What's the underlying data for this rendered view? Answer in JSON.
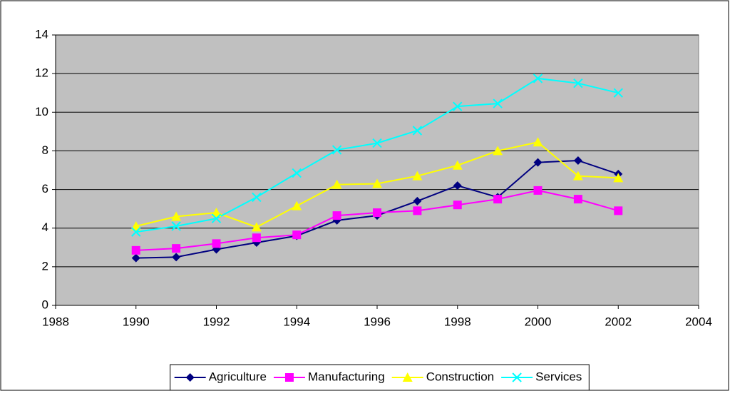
{
  "chart_data": {
    "type": "line",
    "x": [
      1990,
      1991,
      1992,
      1993,
      1994,
      1995,
      1996,
      1997,
      1998,
      1999,
      2000,
      2001,
      2002
    ],
    "series": [
      {
        "name": "Agriculture",
        "color": "#000080",
        "marker": "diamond",
        "values": [
          2.45,
          2.5,
          2.9,
          3.25,
          3.6,
          4.4,
          4.65,
          5.4,
          6.2,
          5.6,
          7.4,
          7.5,
          6.8
        ]
      },
      {
        "name": "Manufacturing",
        "color": "#ff00ff",
        "marker": "square",
        "values": [
          2.85,
          2.95,
          3.2,
          3.5,
          3.65,
          4.65,
          4.8,
          4.9,
          5.2,
          5.5,
          5.95,
          5.5,
          4.9
        ]
      },
      {
        "name": "Construction",
        "color": "#ffff00",
        "marker": "triangle",
        "values": [
          4.1,
          4.6,
          4.8,
          4.05,
          5.15,
          6.25,
          6.3,
          6.7,
          7.25,
          8.0,
          8.45,
          6.7,
          6.6
        ]
      },
      {
        "name": "Services",
        "color": "#00ffff",
        "marker": "x",
        "values": [
          3.8,
          4.1,
          4.5,
          5.6,
          6.85,
          8.05,
          8.4,
          9.05,
          10.3,
          10.45,
          11.75,
          11.5,
          11.0
        ]
      }
    ],
    "xlim": [
      1988,
      2004
    ],
    "xticks": [
      1988,
      1990,
      1992,
      1994,
      1996,
      1998,
      2000,
      2002,
      2004
    ],
    "ylim": [
      0,
      14
    ],
    "yticks": [
      0,
      2,
      4,
      6,
      8,
      10,
      12,
      14
    ],
    "grid": true,
    "legend": "bottom"
  }
}
